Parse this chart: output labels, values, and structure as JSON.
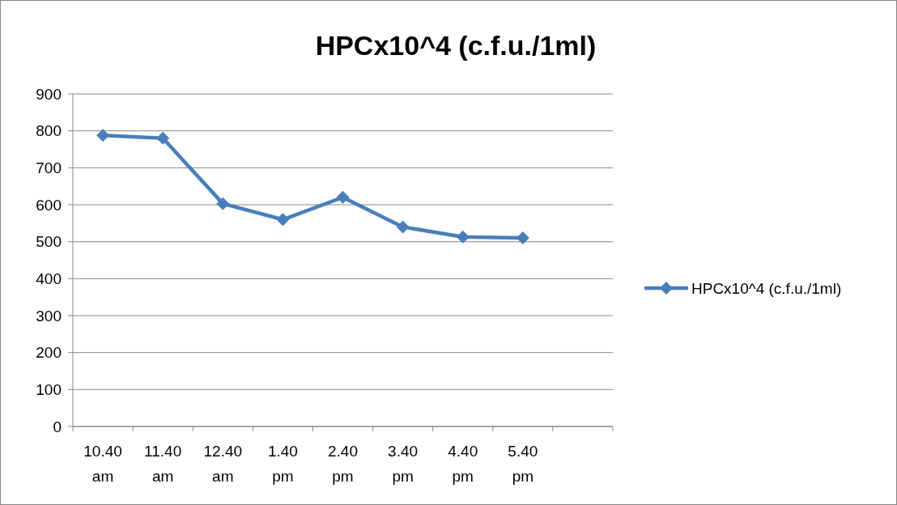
{
  "chart_data": {
    "type": "line",
    "title": "HPCx10^4 (c.f.u./1ml)",
    "categories": [
      "10.40 am",
      "11.40 am",
      "12.40 am",
      "1.40 pm",
      "2.40 pm",
      "3.40 pm",
      "4.40 pm",
      "5.40 pm",
      null
    ],
    "series": [
      {
        "name": "HPCx10^4 (c.f.u./1ml)",
        "color": "#4a7ebb",
        "values": [
          788,
          780,
          603,
          560,
          620,
          540,
          513,
          510,
          null
        ]
      }
    ],
    "ylim": [
      0,
      900
    ],
    "yticks": [
      0,
      100,
      200,
      300,
      400,
      500,
      600,
      700,
      800,
      900
    ],
    "grid": "y",
    "legend": "right",
    "marker": "diamond",
    "line_style": "solid"
  }
}
